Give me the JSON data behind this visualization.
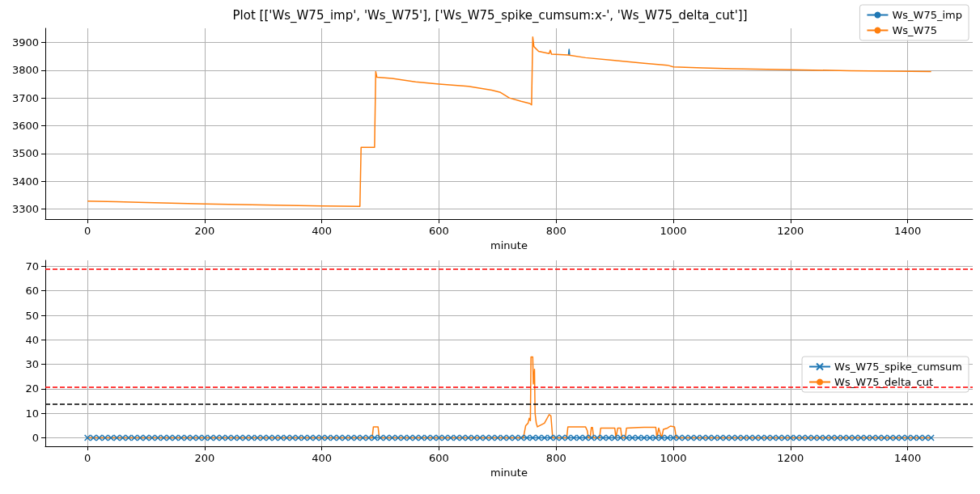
{
  "chart_data": [
    {
      "type": "line",
      "title": "Plot [['Ws_W75_imp', 'Ws_W75'], ['Ws_W75_spike_cumsum:x-', 'Ws_W75_delta_cut']]",
      "xlabel": "minute",
      "xlim": [
        -72,
        1511
      ],
      "xticks": [
        0,
        200,
        400,
        600,
        800,
        1000,
        1200,
        1400
      ],
      "ylim": [
        3263,
        3951
      ],
      "yticks": [
        3300,
        3400,
        3500,
        3600,
        3700,
        3800,
        3900
      ],
      "grid": true,
      "legend": "top right",
      "series": [
        {
          "name": "Ws_W75_imp",
          "color": "#1f77b4",
          "marker": "none",
          "x": [
            821,
            822,
            823
          ],
          "values": [
            3855,
            3875,
            3855
          ]
        },
        {
          "name": "Ws_W75",
          "color": "#ff7f0e",
          "marker": "none",
          "x": [
            0,
            50,
            100,
            200,
            300,
            400,
            465,
            467,
            490,
            492,
            494,
            520,
            560,
            600,
            650,
            690,
            705,
            720,
            740,
            755,
            758,
            760,
            762,
            770,
            788,
            790,
            792,
            820,
            850,
            900,
            950,
            990,
            1000,
            1050,
            1100,
            1200,
            1300,
            1440
          ],
          "values": [
            3328,
            3326,
            3323,
            3318,
            3314,
            3311,
            3309,
            3522,
            3522,
            3795,
            3775,
            3770,
            3758,
            3750,
            3742,
            3728,
            3720,
            3700,
            3688,
            3680,
            3675,
            3920,
            3885,
            3868,
            3860,
            3872,
            3858,
            3855,
            3845,
            3835,
            3825,
            3818,
            3812,
            3808,
            3805,
            3802,
            3798,
            3795
          ]
        }
      ]
    },
    {
      "type": "line",
      "xlabel": "minute",
      "xlim": [
        -72,
        1511
      ],
      "xticks": [
        0,
        200,
        400,
        600,
        800,
        1000,
        1200,
        1400
      ],
      "ylim": [
        -3.45,
        72.45
      ],
      "yticks": [
        0,
        10,
        20,
        30,
        40,
        50,
        60,
        70
      ],
      "grid": true,
      "legend": "right",
      "ref_lines": [
        {
          "axis": "y",
          "value": 69,
          "color": "#ff0000",
          "line_style": "dashed"
        },
        {
          "axis": "y",
          "value": 20.6,
          "color": "#ff0000",
          "line_style": "dashed"
        },
        {
          "axis": "y",
          "value": 13.9,
          "color": "#000000",
          "line_style": "dashed"
        }
      ],
      "series": [
        {
          "name": "Ws_W75_spike_cumsum",
          "color": "#1f77b4",
          "marker": "cross",
          "x": [
            0,
            10,
            20,
            30,
            40,
            50,
            60,
            70,
            80,
            90,
            100,
            110,
            120,
            130,
            140,
            150,
            160,
            170,
            180,
            190,
            200,
            210,
            220,
            230,
            240,
            250,
            260,
            270,
            280,
            290,
            300,
            310,
            320,
            330,
            340,
            350,
            360,
            370,
            380,
            390,
            400,
            410,
            420,
            430,
            440,
            450,
            460,
            470,
            480,
            490,
            500,
            510,
            520,
            530,
            540,
            550,
            560,
            570,
            580,
            590,
            600,
            610,
            620,
            630,
            640,
            650,
            660,
            670,
            680,
            690,
            700,
            710,
            720,
            730,
            740,
            750,
            760,
            770,
            780,
            790,
            800,
            810,
            820,
            830,
            840,
            850,
            860,
            870,
            880,
            890,
            900,
            910,
            920,
            930,
            940,
            950,
            960,
            970,
            980,
            990,
            1000,
            1010,
            1020,
            1030,
            1040,
            1050,
            1060,
            1070,
            1080,
            1090,
            1100,
            1110,
            1120,
            1130,
            1140,
            1150,
            1160,
            1170,
            1180,
            1190,
            1200,
            1210,
            1220,
            1230,
            1240,
            1250,
            1260,
            1270,
            1280,
            1290,
            1300,
            1310,
            1320,
            1330,
            1340,
            1350,
            1360,
            1370,
            1380,
            1390,
            1400,
            1410,
            1420,
            1430,
            1440
          ],
          "values": [
            0,
            0,
            0,
            0,
            0,
            0,
            0,
            0,
            0,
            0,
            0,
            0,
            0,
            0,
            0,
            0,
            0,
            0,
            0,
            0,
            0,
            0,
            0,
            0,
            0,
            0,
            0,
            0,
            0,
            0,
            0,
            0,
            0,
            0,
            0,
            0,
            0,
            0,
            0,
            0,
            0,
            0,
            0,
            0,
            0,
            0,
            0,
            0,
            0,
            0,
            0,
            0,
            0,
            0,
            0,
            0,
            0,
            0,
            0,
            0,
            0,
            0,
            0,
            0,
            0,
            0,
            0,
            0,
            0,
            0,
            0,
            0,
            0,
            0,
            0,
            0,
            0,
            0,
            0,
            0,
            0,
            0,
            0,
            0,
            0,
            0,
            0,
            0,
            0,
            0,
            0,
            0,
            0,
            0,
            0,
            0,
            0,
            0,
            0,
            0,
            0,
            0,
            0,
            0,
            0,
            0,
            0,
            0,
            0,
            0,
            0,
            0,
            0,
            0,
            0,
            0,
            0,
            0,
            0,
            0,
            0,
            0,
            0,
            0,
            0,
            0,
            0,
            0,
            0,
            0,
            0,
            0,
            0,
            0,
            0,
            0,
            0,
            0,
            0,
            0,
            0,
            0,
            0,
            0,
            0
          ]
        },
        {
          "name": "Ws_W75_delta_cut",
          "color": "#ff7f0e",
          "marker": "none",
          "x": [
            0,
            486,
            488,
            496,
            498,
            744,
            748,
            752,
            754,
            756,
            757,
            760,
            761,
            763,
            764,
            766,
            768,
            772,
            780,
            788,
            791,
            794,
            796,
            818,
            820,
            850,
            853,
            855,
            858,
            860,
            862,
            864,
            874,
            876,
            900,
            902,
            905,
            910,
            912,
            918,
            920,
            940,
            950,
            970,
            972,
            975,
            980,
            983,
            990,
            995,
            1002,
            1005,
            1440
          ],
          "values": [
            0,
            0,
            4.5,
            4.5,
            0,
            0,
            5,
            6,
            8,
            7,
            33,
            33,
            22,
            28,
            10,
            6,
            4.5,
            5,
            6,
            9.5,
            9,
            0,
            0,
            0,
            4.5,
            4.5,
            3,
            0,
            0,
            4.2,
            4.2,
            0,
            0,
            4,
            4,
            0,
            4,
            4,
            0,
            0,
            4,
            4.2,
            4.3,
            4.3,
            0,
            4,
            0,
            3.5,
            4,
            4.8,
            4.5,
            0,
            0
          ]
        }
      ]
    }
  ]
}
